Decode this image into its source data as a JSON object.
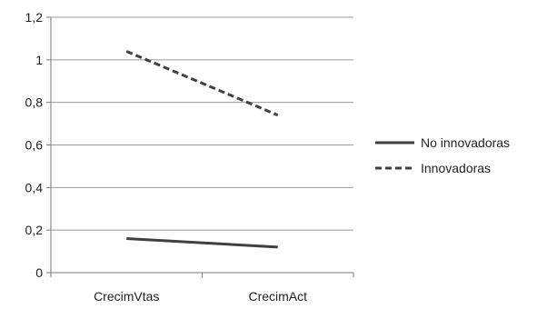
{
  "chart_data": {
    "type": "line",
    "categories": [
      "CrecimVtas",
      "CrecimAct"
    ],
    "series": [
      {
        "name": "No innovadoras",
        "values": [
          0.16,
          0.12
        ],
        "color": "#404040",
        "dash": "solid"
      },
      {
        "name": "Innovadoras",
        "values": [
          1.04,
          0.74
        ],
        "color": "#404040",
        "dash": "dashed"
      }
    ],
    "ylim": [
      0,
      1.2
    ],
    "yticks": [
      "0",
      "0,2",
      "0,4",
      "0,6",
      "0,8",
      "1",
      "1,2"
    ],
    "grid": true,
    "legend": "right"
  }
}
